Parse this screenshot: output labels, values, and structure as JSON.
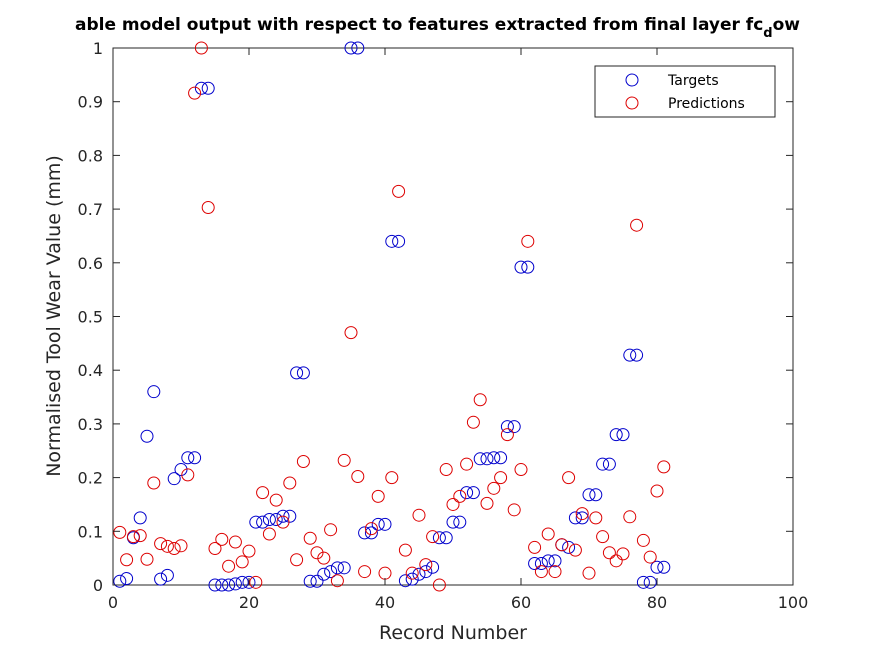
{
  "chart_data": {
    "type": "scatter",
    "title_main": "able model output with respect to features extracted from final layer fc",
    "title_sub": "d",
    "title_tail": "ow",
    "xlabel": "Record Number",
    "ylabel": "Normalised Tool Wear Value (mm)",
    "xlim": [
      0,
      100
    ],
    "ylim": [
      0,
      1
    ],
    "xticks": [
      "0",
      "20",
      "40",
      "60",
      "80",
      "100"
    ],
    "yticks": [
      "0",
      "0.1",
      "0.2",
      "0.3",
      "0.4",
      "0.5",
      "0.6",
      "0.7",
      "0.8",
      "0.9",
      "1"
    ],
    "grid": false,
    "legend_position": "top-right",
    "series": [
      {
        "name": "Targets",
        "color": "#0000cc",
        "marker": "circle-open",
        "x": [
          1,
          2,
          3,
          4,
          5,
          6,
          7,
          8,
          9,
          10,
          11,
          12,
          13,
          14,
          15,
          16,
          17,
          18,
          19,
          20,
          21,
          22,
          23,
          24,
          25,
          26,
          27,
          28,
          29,
          30,
          31,
          32,
          33,
          34,
          35,
          36,
          37,
          38,
          39,
          40,
          41,
          42,
          43,
          44,
          45,
          46,
          47,
          48,
          49,
          50,
          51,
          52,
          53,
          54,
          55,
          56,
          57,
          58,
          59,
          60,
          61,
          62,
          63,
          64,
          65,
          66,
          67,
          68,
          69,
          70,
          71,
          72,
          73,
          74,
          75,
          76,
          77,
          78,
          79,
          80,
          81
        ],
        "y": [
          0.007,
          0.012,
          0.088,
          0.125,
          0.277,
          0.36,
          0.011,
          0.018,
          0.198,
          0.215,
          0.237,
          0.237,
          0.925,
          0.925,
          0.0,
          0.0,
          0.0,
          0.002,
          0.005,
          0.005,
          0.117,
          0.117,
          0.122,
          0.122,
          0.128,
          0.128,
          0.395,
          0.395,
          0.007,
          0.007,
          0.02,
          0.025,
          0.032,
          0.032,
          1.0,
          1.0,
          0.097,
          0.097,
          0.113,
          0.113,
          0.64,
          0.64,
          0.008,
          0.011,
          0.02,
          0.025,
          0.033,
          0.088,
          0.088,
          0.117,
          0.117,
          0.172,
          0.172,
          0.235,
          0.235,
          0.237,
          0.237,
          0.295,
          0.295,
          0.592,
          0.592,
          0.04,
          0.04,
          0.045,
          0.045,
          0.075,
          0.07,
          0.125,
          0.125,
          0.168,
          0.168,
          0.225,
          0.225,
          0.28,
          0.28,
          0.428,
          0.428,
          0.005,
          0.005,
          0.033,
          0.033
        ]
      },
      {
        "name": "Predictions",
        "color": "#dd0000",
        "marker": "circle-open",
        "x": [
          1,
          2,
          3,
          4,
          5,
          6,
          7,
          8,
          9,
          10,
          11,
          12,
          13,
          14,
          15,
          16,
          17,
          18,
          19,
          20,
          21,
          22,
          23,
          24,
          25,
          26,
          27,
          28,
          29,
          30,
          31,
          32,
          33,
          34,
          35,
          36,
          37,
          38,
          39,
          40,
          41,
          42,
          43,
          44,
          45,
          46,
          47,
          48,
          49,
          50,
          51,
          52,
          53,
          54,
          55,
          56,
          57,
          58,
          59,
          60,
          61,
          62,
          63,
          64,
          65,
          66,
          67,
          68,
          69,
          70,
          71,
          72,
          73,
          74,
          75,
          76,
          77,
          78,
          79,
          80,
          81
        ],
        "y": [
          0.098,
          0.047,
          0.09,
          0.092,
          0.048,
          0.19,
          0.077,
          0.072,
          0.068,
          0.073,
          0.205,
          0.916,
          1.0,
          0.703,
          0.068,
          0.085,
          0.035,
          0.08,
          0.043,
          0.063,
          0.005,
          0.172,
          0.095,
          0.158,
          0.117,
          0.19,
          0.047,
          0.23,
          0.087,
          0.06,
          0.05,
          0.103,
          0.008,
          0.232,
          0.47,
          0.202,
          0.025,
          0.105,
          0.165,
          0.022,
          0.2,
          0.733,
          0.065,
          0.022,
          0.13,
          0.038,
          0.09,
          0.0,
          0.215,
          0.15,
          0.165,
          0.225,
          0.303,
          0.345,
          0.152,
          0.18,
          0.2,
          0.28,
          0.14,
          0.215,
          0.64,
          0.07,
          0.025,
          0.095,
          0.025,
          0.075,
          0.2,
          0.065,
          0.133,
          0.022,
          0.125,
          0.09,
          0.06,
          0.045,
          0.058,
          0.127,
          0.67,
          0.083,
          0.052,
          0.175,
          0.22
        ]
      }
    ]
  }
}
